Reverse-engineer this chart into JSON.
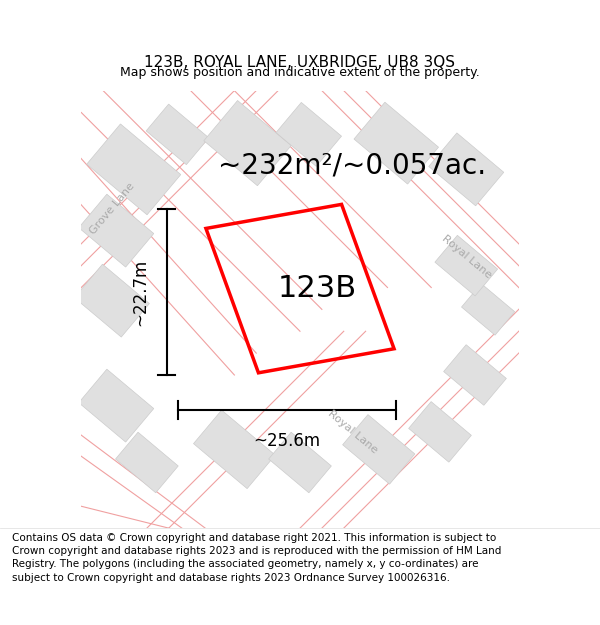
{
  "title": "123B, ROYAL LANE, UXBRIDGE, UB8 3QS",
  "subtitle": "Map shows position and indicative extent of the property.",
  "area_text": "~232m²/~0.057ac.",
  "property_label": "123B",
  "dim_width": "~25.6m",
  "dim_height": "~22.7m",
  "copyright_text": "Contains OS data © Crown copyright and database right 2021. This information is subject to Crown copyright and database rights 2023 and is reproduced with the permission of HM Land Registry. The polygons (including the associated geometry, namely x, y co-ordinates) are subject to Crown copyright and database rights 2023 Ordnance Survey 100026316.",
  "map_bg": "#f5f5f5",
  "fig_bg": "#ffffff",
  "road_color": "#f0a0a0",
  "building_color": "#e0e0e0",
  "building_edge": "#cccccc",
  "property_color": "#ff0000",
  "label_fontsize": 22,
  "area_fontsize": 20,
  "title_fontsize": 11,
  "subtitle_fontsize": 9,
  "copyright_fontsize": 7.5
}
